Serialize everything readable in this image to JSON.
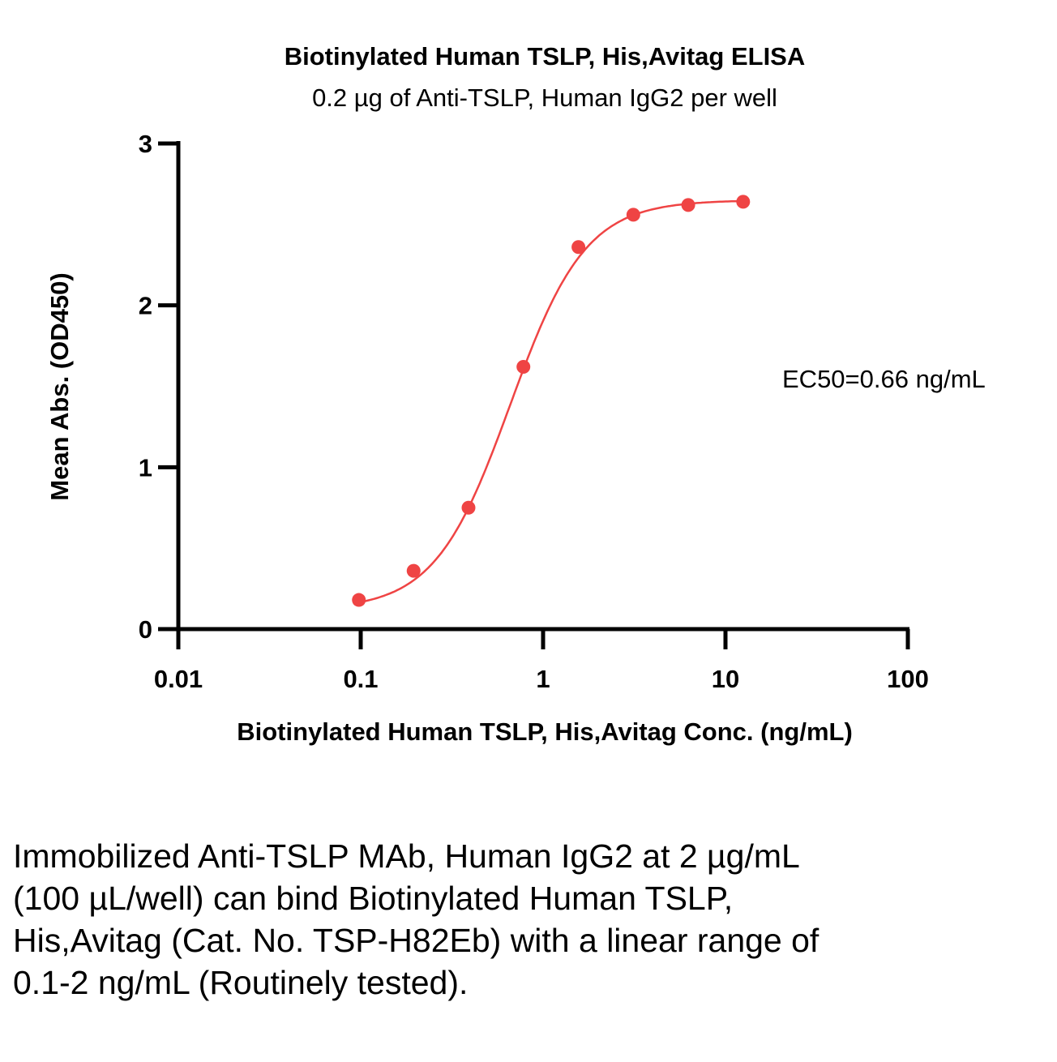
{
  "chart_data": {
    "type": "scatter",
    "title": "Biotinylated Human TSLP, His,Avitag ELISA",
    "subtitle": "0.2 µg of Anti-TSLP, Human IgG2 per well",
    "xlabel": "Biotinylated Human TSLP, His,Avitag Conc. (ng/mL)",
    "ylabel": "Mean Abs. (OD450)",
    "xscale": "log",
    "xlim": [
      0.01,
      100
    ],
    "ylim": [
      0,
      3
    ],
    "xticks": [
      "0.01",
      "0.1",
      "1",
      "10",
      "100"
    ],
    "yticks": [
      "0",
      "1",
      "2",
      "3"
    ],
    "grid": false,
    "color": "#ef4444",
    "annotation": "EC50=0.66 ng/mL",
    "fit": "sigmoidal curve",
    "x": [
      0.0977,
      0.195,
      0.39,
      0.78,
      1.5625,
      3.125,
      6.25,
      12.5
    ],
    "y": [
      0.18,
      0.36,
      0.75,
      1.62,
      2.36,
      2.56,
      2.62,
      2.64
    ],
    "ec50": 0.66
  },
  "caption": "Immobilized Anti-TSLP MAb, Human IgG2 at 2 µg/mL (100 µL/well) can bind Biotinylated Human TSLP, His,Avitag (Cat. No. TSP-H82Eb) with a linear range of 0.1-2 ng/mL (Routinely tested)."
}
